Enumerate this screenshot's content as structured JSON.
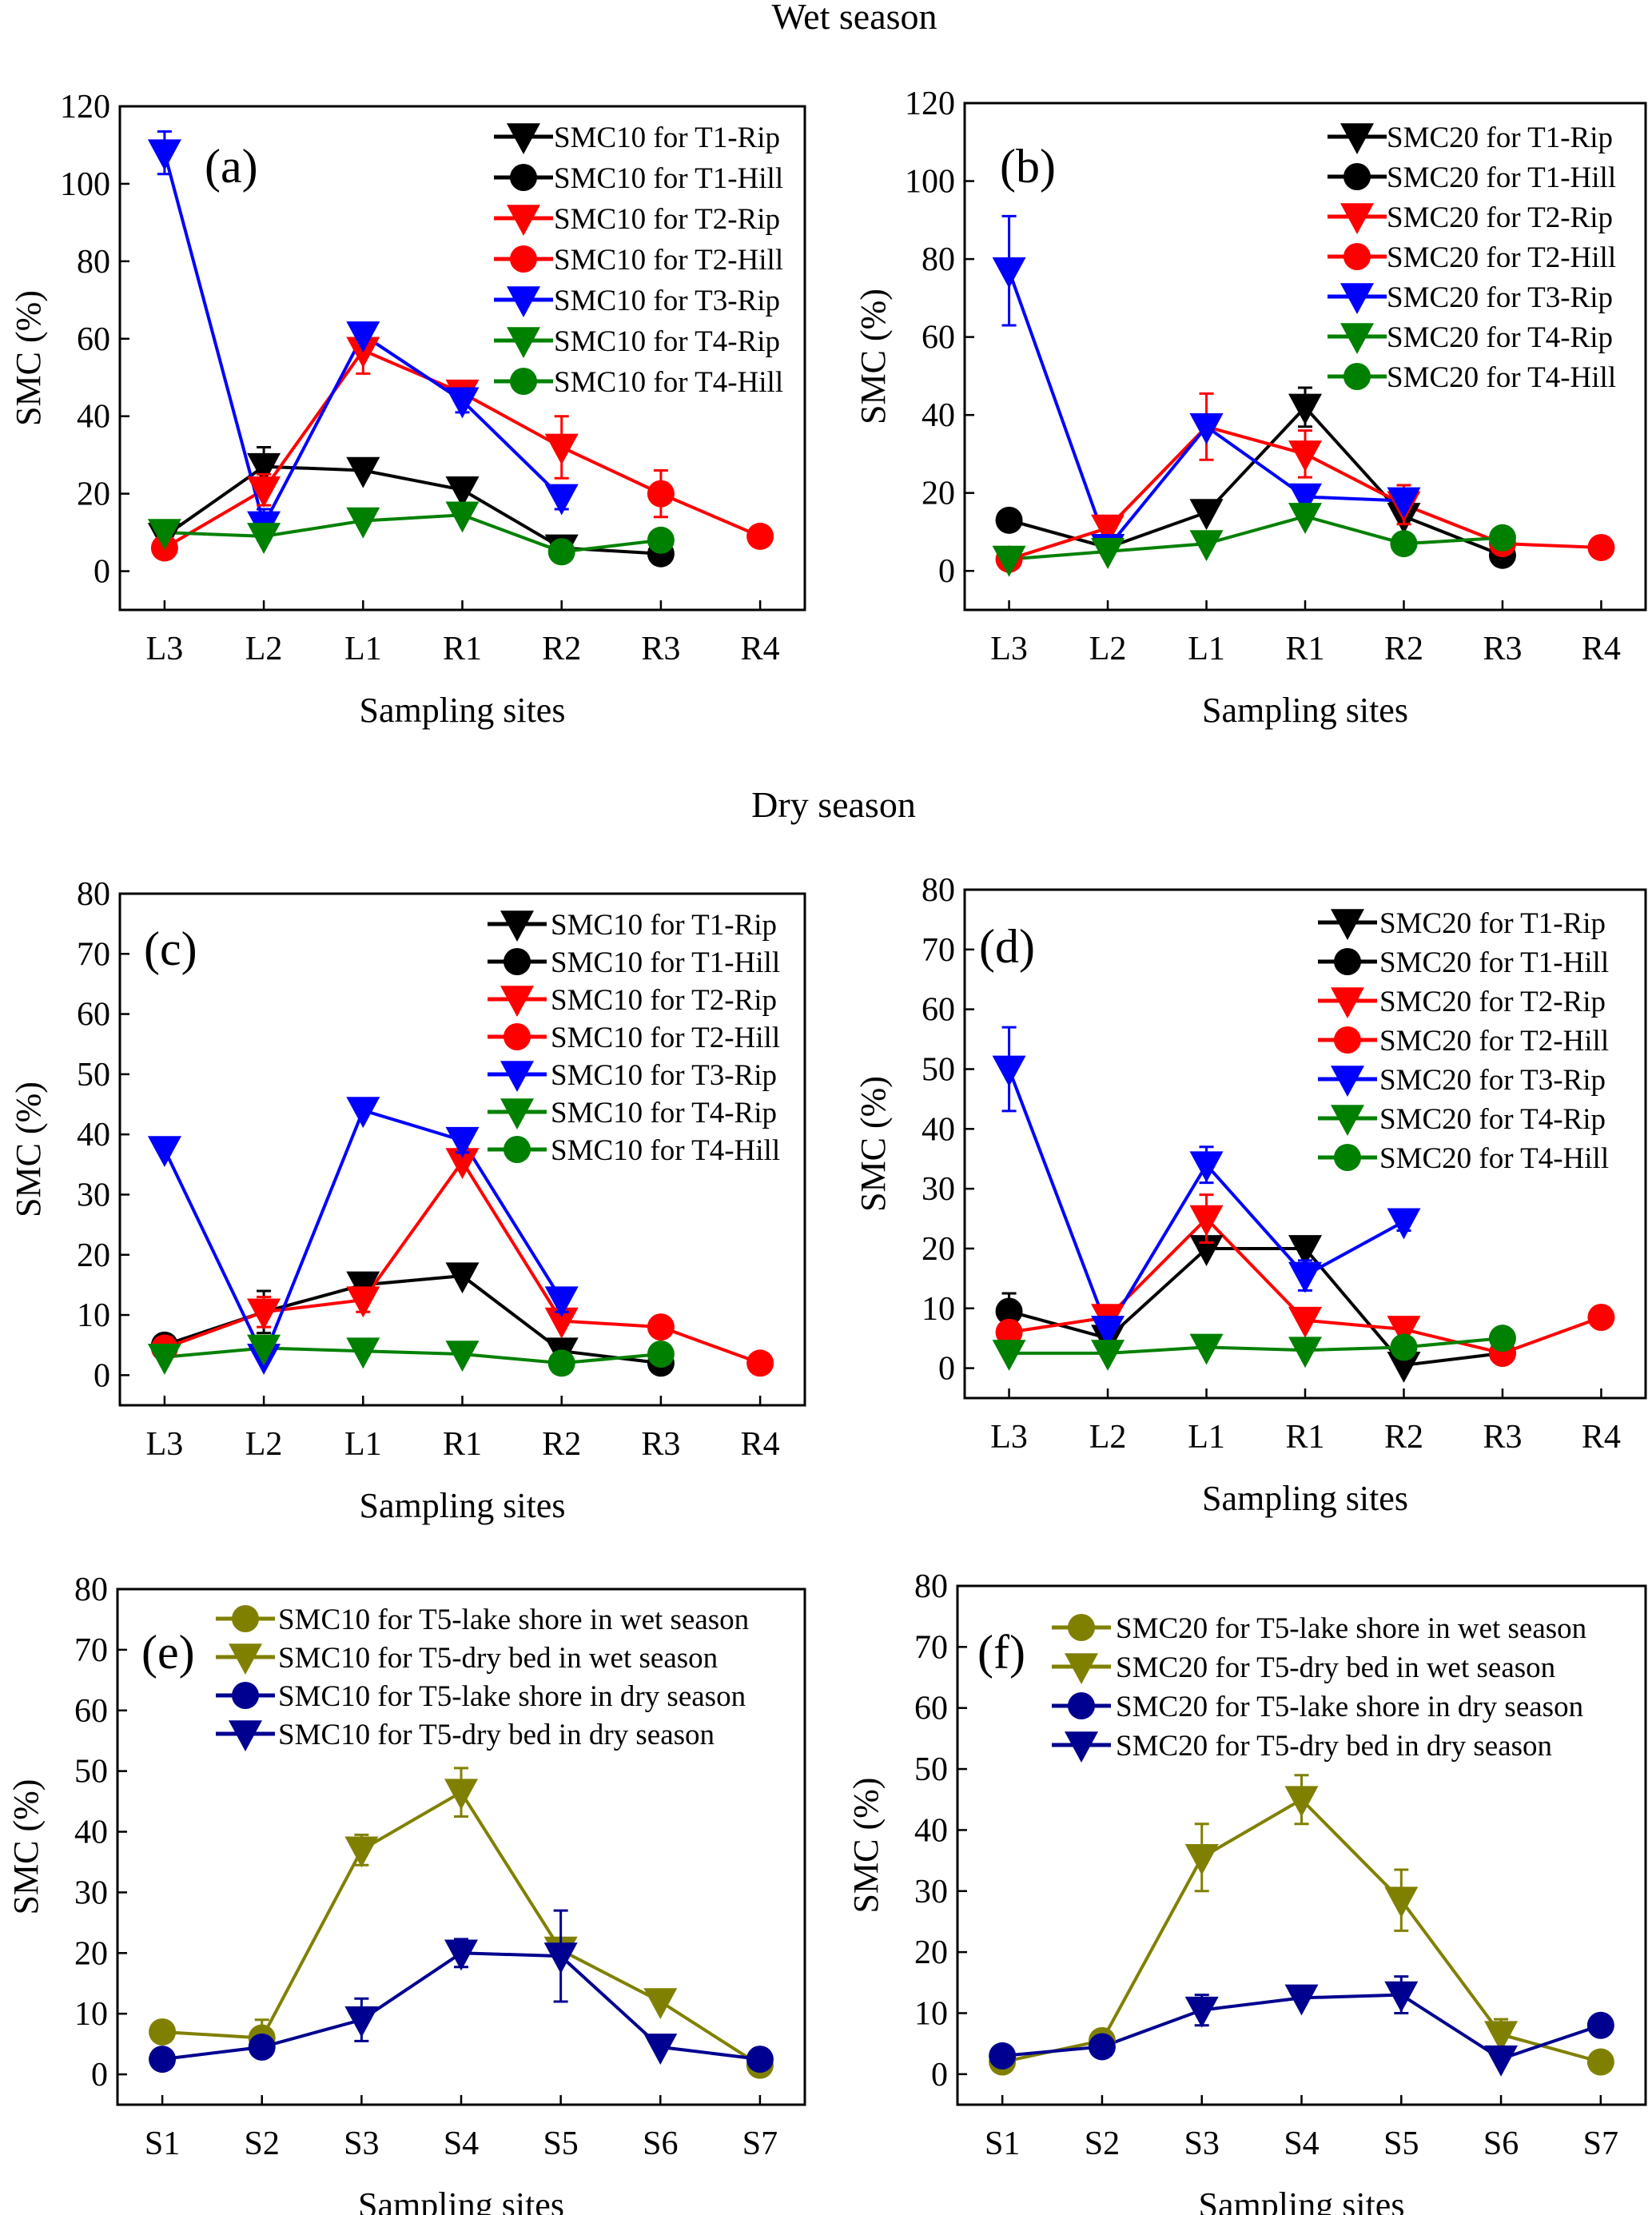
{
  "titles": {
    "wet": "Wet season",
    "dry": "Dry season"
  },
  "chart_data": [
    {
      "panel": "(a)",
      "type": "line",
      "season": "wet",
      "categories": [
        "L3",
        "L2",
        "L1",
        "R1",
        "R2",
        "R3",
        "R4"
      ],
      "ylim": [
        -10,
        120
      ],
      "yticks": [
        0,
        20,
        40,
        60,
        80,
        100,
        120
      ],
      "xlabel": "Sampling sites",
      "ylabel": "SMC (%)",
      "legend": "top-right",
      "grid": false,
      "series": [
        {
          "name": "SMC10 for T1-Rip",
          "color": "#000000",
          "marker": "triangle-down",
          "values": [
            9,
            27,
            26,
            21,
            6,
            null,
            null
          ],
          "err": [
            null,
            5,
            null,
            null,
            null,
            null,
            null
          ]
        },
        {
          "name": "SMC10 for T1-Hill",
          "color": "#000000",
          "marker": "circle",
          "values": [
            null,
            null,
            null,
            null,
            null,
            4.5,
            null
          ],
          "err": [
            null,
            null,
            null,
            null,
            null,
            null,
            null
          ]
        },
        {
          "name": "SMC10 for T2-Rip",
          "color": "#ff0000",
          "marker": "triangle-down",
          "values": [
            null,
            21,
            57,
            46,
            32,
            null,
            null
          ],
          "err": [
            null,
            4,
            6,
            2.5,
            8,
            null,
            null
          ]
        },
        {
          "name": "SMC10 for T2-Hill",
          "color": "#ff0000",
          "marker": "circle",
          "values": [
            6,
            null,
            null,
            null,
            null,
            20,
            9
          ],
          "err": [
            null,
            null,
            null,
            null,
            null,
            6,
            null
          ]
        },
        {
          "name": "SMC10 for T3-Rip",
          "color": "#0000ff",
          "marker": "triangle-down",
          "values": [
            108,
            12,
            61,
            44,
            19,
            null,
            null
          ],
          "err": [
            5.5,
            4,
            null,
            3,
            3,
            null,
            null
          ]
        },
        {
          "name": "SMC10 for T4-Rip",
          "color": "#008000",
          "marker": "triangle-down",
          "values": [
            10,
            9,
            13,
            14.5,
            null,
            null,
            null
          ],
          "err": [
            null,
            null,
            null,
            null,
            null,
            null,
            null
          ]
        },
        {
          "name": "SMC10 for T4-Hill",
          "color": "#008000",
          "marker": "circle",
          "values": [
            null,
            null,
            null,
            null,
            5,
            8,
            null
          ],
          "err": [
            null,
            null,
            null,
            null,
            null,
            null,
            null
          ]
        }
      ]
    },
    {
      "panel": "(b)",
      "type": "line",
      "season": "wet",
      "categories": [
        "L3",
        "L2",
        "L1",
        "R1",
        "R2",
        "R3",
        "R4"
      ],
      "ylim": [
        -10,
        120
      ],
      "yticks": [
        0,
        20,
        40,
        60,
        80,
        100,
        120
      ],
      "xlabel": "Sampling sites",
      "ylabel": "SMC (%)",
      "legend": "top-right",
      "grid": false,
      "series": [
        {
          "name": "SMC20 for T1-Rip",
          "color": "#000000",
          "marker": "triangle-down",
          "values": [
            null,
            6,
            15,
            42,
            14,
            null,
            null
          ],
          "err": [
            null,
            null,
            null,
            5,
            null,
            null,
            null
          ]
        },
        {
          "name": "SMC20 for T1-Hill",
          "color": "#000000",
          "marker": "circle",
          "values": [
            13,
            null,
            null,
            null,
            null,
            4,
            null
          ],
          "err": [
            null,
            null,
            null,
            null,
            null,
            null,
            null
          ]
        },
        {
          "name": "SMC20 for T2-Rip",
          "color": "#ff0000",
          "marker": "triangle-down",
          "values": [
            null,
            11,
            37,
            30,
            17,
            null,
            null
          ],
          "err": [
            null,
            null,
            8.5,
            6,
            5,
            null,
            null
          ]
        },
        {
          "name": "SMC20 for T2-Hill",
          "color": "#ff0000",
          "marker": "circle",
          "values": [
            3,
            null,
            null,
            null,
            null,
            7,
            6
          ],
          "err": [
            null,
            null,
            null,
            null,
            null,
            null,
            null
          ]
        },
        {
          "name": "SMC20 for T3-Rip",
          "color": "#0000ff",
          "marker": "triangle-down",
          "values": [
            77,
            6,
            37,
            19,
            18,
            null,
            null
          ],
          "err": [
            14,
            null,
            null,
            null,
            null,
            null,
            null
          ]
        },
        {
          "name": "SMC20 for T4-Rip",
          "color": "#008000",
          "marker": "triangle-down",
          "values": [
            3,
            5,
            7,
            14,
            null,
            null,
            null
          ],
          "err": [
            null,
            null,
            null,
            null,
            null,
            null,
            null
          ]
        },
        {
          "name": "SMC20 for T4-Hill",
          "color": "#008000",
          "marker": "circle",
          "values": [
            null,
            null,
            null,
            null,
            7,
            8.5,
            null
          ],
          "err": [
            null,
            null,
            null,
            null,
            null,
            null,
            null
          ]
        }
      ]
    },
    {
      "panel": "(c)",
      "type": "line",
      "season": "dry",
      "categories": [
        "L3",
        "L2",
        "L1",
        "R1",
        "R2",
        "R3",
        "R4"
      ],
      "ylim": [
        -5,
        80
      ],
      "yticks": [
        0,
        10,
        20,
        30,
        40,
        50,
        60,
        70,
        80
      ],
      "xlabel": "Sampling sites",
      "ylabel": "SMC (%)",
      "legend": "top-right",
      "grid": false,
      "series": [
        {
          "name": "SMC10 for T1-Rip",
          "color": "#000000",
          "marker": "triangle-down",
          "values": [
            null,
            10.5,
            15,
            16.5,
            4,
            null,
            null
          ],
          "err": [
            null,
            3.5,
            null,
            null,
            null,
            null,
            null
          ]
        },
        {
          "name": "SMC10 for T1-Hill",
          "color": "#000000",
          "marker": "circle",
          "values": [
            5,
            null,
            null,
            null,
            null,
            2,
            null
          ],
          "err": [
            null,
            null,
            null,
            null,
            null,
            null,
            null
          ]
        },
        {
          "name": "SMC10 for T2-Rip",
          "color": "#ff0000",
          "marker": "triangle-down",
          "values": [
            null,
            10.5,
            12.5,
            35.5,
            9,
            null,
            null
          ],
          "err": [
            null,
            2.5,
            2,
            null,
            null,
            null,
            null
          ]
        },
        {
          "name": "SMC10 for T2-Hill",
          "color": "#ff0000",
          "marker": "circle",
          "values": [
            4.5,
            null,
            null,
            null,
            null,
            8,
            2
          ],
          "err": [
            null,
            null,
            null,
            null,
            null,
            null,
            1.5
          ]
        },
        {
          "name": "SMC10 for T3-Rip",
          "color": "#0000ff",
          "marker": "triangle-down",
          "values": [
            37.5,
            3,
            44,
            39,
            12.5,
            null,
            null
          ],
          "err": [
            null,
            null,
            null,
            2,
            2,
            null,
            null
          ]
        },
        {
          "name": "SMC10 for T4-Rip",
          "color": "#008000",
          "marker": "triangle-down",
          "values": [
            3,
            4.5,
            4,
            3.5,
            null,
            null,
            null
          ],
          "err": [
            null,
            null,
            null,
            null,
            null,
            null,
            null
          ]
        },
        {
          "name": "SMC10 for T4-Hill",
          "color": "#008000",
          "marker": "circle",
          "values": [
            null,
            null,
            null,
            null,
            2,
            3.5,
            null
          ],
          "err": [
            null,
            null,
            null,
            null,
            null,
            null,
            null
          ]
        }
      ]
    },
    {
      "panel": "(d)",
      "type": "line",
      "season": "dry",
      "categories": [
        "L3",
        "L2",
        "L1",
        "R1",
        "R2",
        "R3",
        "R4"
      ],
      "ylim": [
        -5,
        80
      ],
      "yticks": [
        0,
        10,
        20,
        30,
        40,
        50,
        60,
        70,
        80
      ],
      "xlabel": "Sampling sites",
      "ylabel": "SMC (%)",
      "legend": "top-right",
      "grid": false,
      "series": [
        {
          "name": "SMC20 for T1-Rip",
          "color": "#000000",
          "marker": "triangle-down",
          "values": [
            null,
            5,
            20,
            20,
            0.5,
            null,
            null
          ],
          "err": [
            null,
            null,
            null,
            null,
            null,
            null,
            null
          ]
        },
        {
          "name": "SMC20 for T1-Hill",
          "color": "#000000",
          "marker": "circle",
          "values": [
            9.5,
            null,
            null,
            null,
            null,
            2.5,
            null
          ],
          "err": [
            3,
            null,
            null,
            null,
            null,
            null,
            null
          ]
        },
        {
          "name": "SMC20 for T2-Rip",
          "color": "#ff0000",
          "marker": "triangle-down",
          "values": [
            null,
            8.5,
            25,
            8,
            6.5,
            null,
            null
          ],
          "err": [
            null,
            null,
            4,
            null,
            null,
            null,
            null
          ]
        },
        {
          "name": "SMC20 for T2-Hill",
          "color": "#ff0000",
          "marker": "circle",
          "values": [
            6,
            null,
            null,
            null,
            null,
            2.5,
            8.5
          ],
          "err": [
            null,
            null,
            null,
            null,
            null,
            null,
            null
          ]
        },
        {
          "name": "SMC20 for T3-Rip",
          "color": "#0000ff",
          "marker": "triangle-down",
          "values": [
            50,
            6.5,
            34,
            15.5,
            24.5,
            null,
            null
          ],
          "err": [
            7,
            null,
            3,
            2.5,
            1.5,
            null,
            null
          ]
        },
        {
          "name": "SMC20 for T4-Rip",
          "color": "#008000",
          "marker": "triangle-down",
          "values": [
            2.5,
            2.5,
            3.5,
            3,
            null,
            null,
            null
          ],
          "err": [
            null,
            null,
            null,
            null,
            null,
            null,
            null
          ]
        },
        {
          "name": "SMC20 for T4-Hill",
          "color": "#008000",
          "marker": "circle",
          "values": [
            null,
            null,
            null,
            null,
            3.5,
            5,
            null
          ],
          "err": [
            null,
            null,
            null,
            null,
            null,
            null,
            null
          ]
        }
      ]
    },
    {
      "panel": "(e)",
      "type": "line",
      "categories": [
        "S1",
        "S2",
        "S3",
        "S4",
        "S5",
        "S6",
        "S7"
      ],
      "ylim": [
        -5,
        80
      ],
      "yticks": [
        0,
        10,
        20,
        30,
        40,
        50,
        60,
        70,
        80
      ],
      "xlabel": "Sampling sites",
      "ylabel": "SMC (%)",
      "legend": "top-right",
      "grid": false,
      "series": [
        {
          "name": "SMC10 for T5-lake shore in wet season",
          "color": "#808000",
          "marker": "circle",
          "values": [
            7,
            6,
            null,
            null,
            null,
            null,
            1.5
          ],
          "err": [
            null,
            3,
            null,
            null,
            null,
            null,
            null
          ]
        },
        {
          "name": "SMC10 for T5-dry bed in wet season",
          "color": "#808000",
          "marker": "triangle-down",
          "values": [
            null,
            null,
            37,
            46.5,
            20.5,
            12,
            null
          ],
          "err": [
            null,
            null,
            2.5,
            4,
            null,
            null,
            null
          ]
        },
        {
          "name": "SMC10 for T5-lake shore in dry season",
          "color": "#000090",
          "marker": "circle",
          "values": [
            2.5,
            4.5,
            null,
            null,
            null,
            null,
            2.5
          ],
          "err": [
            null,
            null,
            null,
            null,
            null,
            null,
            null
          ]
        },
        {
          "name": "SMC10 for T5-dry bed in dry season",
          "color": "#000090",
          "marker": "triangle-down",
          "values": [
            null,
            null,
            9,
            20,
            19.5,
            4.5,
            null
          ],
          "err": [
            null,
            null,
            3.5,
            2.3,
            7.5,
            null,
            null
          ]
        }
      ]
    },
    {
      "panel": "(f)",
      "type": "line",
      "categories": [
        "S1",
        "S2",
        "S3",
        "S4",
        "S5",
        "S6",
        "S7"
      ],
      "ylim": [
        -5,
        80
      ],
      "yticks": [
        0,
        10,
        20,
        30,
        40,
        50,
        60,
        70,
        80
      ],
      "xlabel": "Sampling sites",
      "ylabel": "SMC (%)",
      "legend": "top-right",
      "grid": false,
      "series": [
        {
          "name": "SMC20 for T5-lake shore in wet season",
          "color": "#808000",
          "marker": "circle",
          "values": [
            2,
            5.5,
            null,
            null,
            null,
            null,
            2
          ],
          "err": [
            null,
            null,
            null,
            null,
            null,
            null,
            null
          ]
        },
        {
          "name": "SMC20 for T5-dry bed in wet season",
          "color": "#808000",
          "marker": "triangle-down",
          "values": [
            null,
            null,
            35.5,
            45,
            28.5,
            6.5,
            null
          ],
          "err": [
            null,
            null,
            5.5,
            4,
            5,
            2.5,
            null
          ]
        },
        {
          "name": "SMC20 for T5-lake shore in dry season",
          "color": "#000090",
          "marker": "circle",
          "values": [
            3,
            4.5,
            null,
            null,
            null,
            null,
            8
          ],
          "err": [
            null,
            null,
            null,
            null,
            null,
            null,
            null
          ]
        },
        {
          "name": "SMC20 for T5-dry bed in dry season",
          "color": "#000090",
          "marker": "triangle-down",
          "values": [
            null,
            null,
            10.5,
            12.5,
            13,
            2.5,
            null
          ],
          "err": [
            null,
            null,
            2.5,
            null,
            3,
            null,
            null
          ]
        }
      ]
    }
  ]
}
